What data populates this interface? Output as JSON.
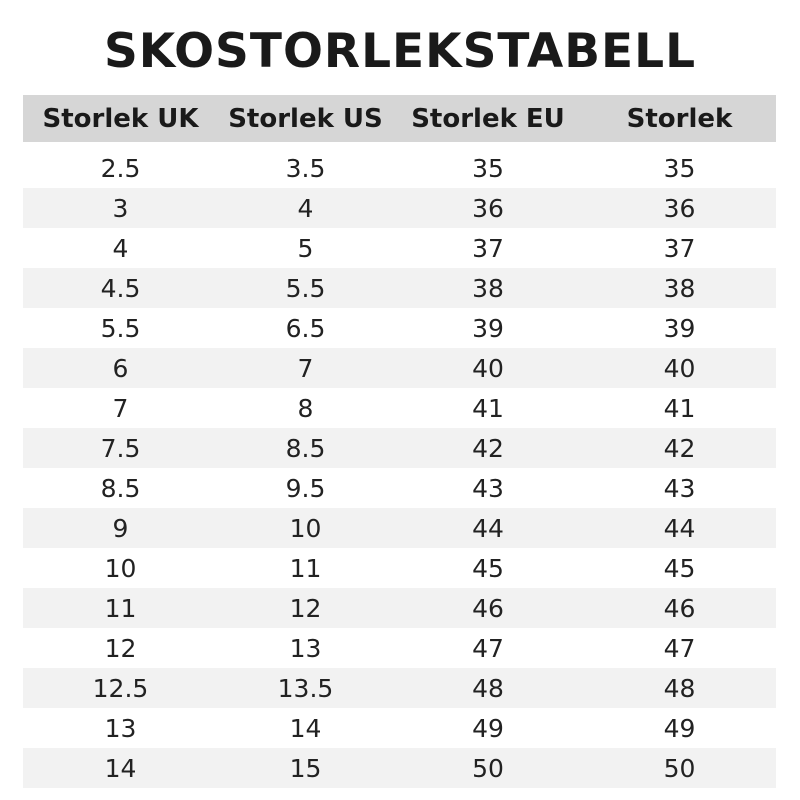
{
  "title": "SKOSTORLEKSTABELL",
  "headers": [
    "Storlek UK",
    "Storlek US",
    "Storlek EU",
    "Storlek"
  ],
  "rows": [
    [
      "2.5",
      "3.5",
      "35",
      "35"
    ],
    [
      "3",
      "4",
      "36",
      "36"
    ],
    [
      "4",
      "5",
      "37",
      "37"
    ],
    [
      "4.5",
      "5.5",
      "38",
      "38"
    ],
    [
      "5.5",
      "6.5",
      "39",
      "39"
    ],
    [
      "6",
      "7",
      "40",
      "40"
    ],
    [
      "7",
      "8",
      "41",
      "41"
    ],
    [
      "7.5",
      "8.5",
      "42",
      "42"
    ],
    [
      "8.5",
      "9.5",
      "43",
      "43"
    ],
    [
      "9",
      "10",
      "44",
      "44"
    ],
    [
      "10",
      "11",
      "45",
      "45"
    ],
    [
      "11",
      "12",
      "46",
      "46"
    ],
    [
      "12",
      "13",
      "47",
      "47"
    ],
    [
      "12.5",
      "13.5",
      "48",
      "48"
    ],
    [
      "13",
      "14",
      "49",
      "49"
    ],
    [
      "14",
      "15",
      "50",
      "50"
    ]
  ],
  "colors": {
    "header_bg": "#d6d6d6",
    "alt_row_bg": "#f2f2f2"
  }
}
